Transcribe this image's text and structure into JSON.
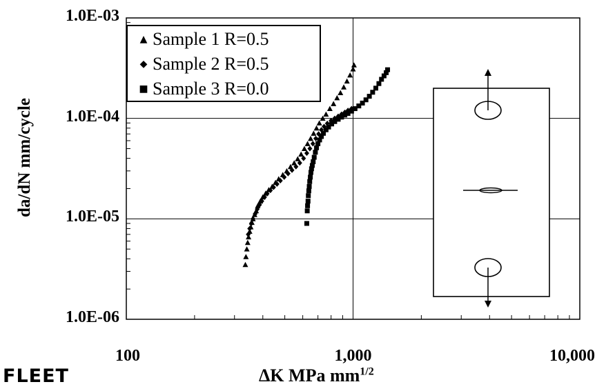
{
  "chart_data": {
    "type": "scatter",
    "xscale": "log",
    "yscale": "log",
    "xlim": [
      100,
      10000
    ],
    "ylim": [
      1e-06,
      0.001
    ],
    "xlabel_main": "ΔK MPa mm",
    "xlabel_sup": "1/2",
    "ylabel": "da/dN mm/cycle",
    "x_ticks": [
      "100",
      "1,000",
      "10,000"
    ],
    "y_ticks": [
      "1.0E-06",
      "1.0E-05",
      "1.0E-04",
      "1.0E-03"
    ],
    "grid": true,
    "legend_position": "top-left",
    "series": [
      {
        "name": "Sample 1 R=0.5",
        "marker": "triangle",
        "points": [
          [
            335,
            3.5e-06
          ],
          [
            337,
            4.2e-06
          ],
          [
            340,
            5e-06
          ],
          [
            343,
            5.8e-06
          ],
          [
            346,
            6.6e-06
          ],
          [
            350,
            7.5e-06
          ],
          [
            354,
            8.3e-06
          ],
          [
            358,
            9.2e-06
          ],
          [
            362,
            1e-05
          ],
          [
            368,
            1.1e-05
          ],
          [
            374,
            1.2e-05
          ],
          [
            380,
            1.35e-05
          ],
          [
            390,
            1.5e-05
          ],
          [
            400,
            1.65e-05
          ],
          [
            412,
            1.8e-05
          ],
          [
            425,
            1.95e-05
          ],
          [
            440,
            2.1e-05
          ],
          [
            455,
            2.3e-05
          ],
          [
            470,
            2.5e-05
          ],
          [
            490,
            2.75e-05
          ],
          [
            510,
            3e-05
          ],
          [
            530,
            3.3e-05
          ],
          [
            550,
            3.6e-05
          ],
          [
            570,
            3.95e-05
          ],
          [
            590,
            4.4e-05
          ],
          [
            610,
            5e-05
          ],
          [
            630,
            5.6e-05
          ],
          [
            650,
            6.3e-05
          ],
          [
            670,
            7.1e-05
          ],
          [
            690,
            8e-05
          ],
          [
            710,
            9e-05
          ],
          [
            735,
            0.0001
          ],
          [
            760,
            0.00011
          ],
          [
            790,
            0.000125
          ],
          [
            820,
            0.00014
          ],
          [
            850,
            0.00016
          ],
          [
            880,
            0.00018
          ],
          [
            910,
            0.000205
          ],
          [
            940,
            0.000235
          ],
          [
            970,
            0.00027
          ],
          [
            1000,
            0.00031
          ],
          [
            1010,
            0.00034
          ]
        ]
      },
      {
        "name": "Sample 2 R=0.5",
        "marker": "diamond",
        "points": [
          [
            345,
            7e-06
          ],
          [
            350,
            8e-06
          ],
          [
            356,
            9e-06
          ],
          [
            362,
            1e-05
          ],
          [
            370,
            1.12e-05
          ],
          [
            378,
            1.25e-05
          ],
          [
            387,
            1.38e-05
          ],
          [
            396,
            1.5e-05
          ],
          [
            407,
            1.64e-05
          ],
          [
            418,
            1.78e-05
          ],
          [
            432,
            1.92e-05
          ],
          [
            446,
            2.06e-05
          ],
          [
            462,
            2.22e-05
          ],
          [
            478,
            2.4e-05
          ],
          [
            497,
            2.6e-05
          ],
          [
            517,
            2.82e-05
          ],
          [
            538,
            3.05e-05
          ],
          [
            560,
            3.3e-05
          ],
          [
            582,
            3.6e-05
          ],
          [
            605,
            4e-05
          ],
          [
            625,
            4.5e-05
          ],
          [
            645,
            5e-05
          ],
          [
            665,
            5.6e-05
          ],
          [
            685,
            6.3e-05
          ],
          [
            705,
            7e-05
          ],
          [
            725,
            7.7e-05
          ],
          [
            745,
            8.3e-05
          ],
          [
            770,
            8.9e-05
          ],
          [
            800,
            9.5e-05
          ],
          [
            830,
            0.0001
          ],
          [
            860,
            0.000105
          ],
          [
            890,
            0.00011
          ],
          [
            920,
            0.000115
          ],
          [
            950,
            0.00012
          ],
          [
            985,
            0.000125
          ]
        ]
      },
      {
        "name": "Sample 3 R=0.0",
        "marker": "square",
        "points": [
          [
            625,
            9e-06
          ],
          [
            628,
            1.2e-05
          ],
          [
            630,
            1.35e-05
          ],
          [
            633,
            1.5e-05
          ],
          [
            635,
            1.7e-05
          ],
          [
            638,
            1.9e-05
          ],
          [
            641,
            2.1e-05
          ],
          [
            644,
            2.35e-05
          ],
          [
            648,
            2.6e-05
          ],
          [
            652,
            2.9e-05
          ],
          [
            656,
            3.15e-05
          ],
          [
            661,
            3.4e-05
          ],
          [
            667,
            3.7e-05
          ],
          [
            674,
            4.1e-05
          ],
          [
            682,
            4.6e-05
          ],
          [
            690,
            5.1e-05
          ],
          [
            700,
            5.6e-05
          ],
          [
            712,
            6.1e-05
          ],
          [
            725,
            6.6e-05
          ],
          [
            740,
            7.1e-05
          ],
          [
            760,
            7.7e-05
          ],
          [
            780,
            8.2e-05
          ],
          [
            805,
            8.8e-05
          ],
          [
            830,
            9.3e-05
          ],
          [
            860,
            9.8e-05
          ],
          [
            890,
            0.000103
          ],
          [
            920,
            0.000108
          ],
          [
            950,
            0.000112
          ],
          [
            985,
            0.000118
          ],
          [
            1020,
            0.000125
          ],
          [
            1060,
            0.000133
          ],
          [
            1100,
            0.000142
          ],
          [
            1140,
            0.000153
          ],
          [
            1180,
            0.000166
          ],
          [
            1220,
            0.000182
          ],
          [
            1260,
            0.0002
          ],
          [
            1300,
            0.000222
          ],
          [
            1335,
            0.000245
          ],
          [
            1370,
            0.000265
          ],
          [
            1400,
            0.000285
          ],
          [
            1420,
            0.000305
          ]
        ]
      }
    ]
  },
  "watermark": "FLEET"
}
